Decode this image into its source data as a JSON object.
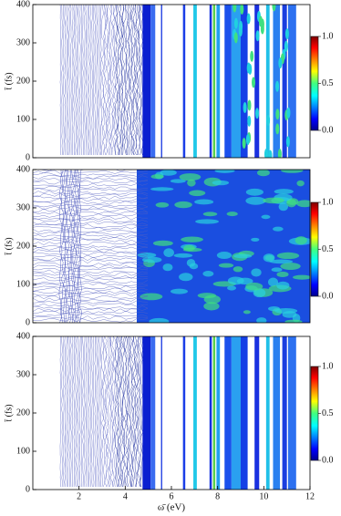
{
  "chart_data": [
    {
      "type": "contour",
      "ylabel": "t̄ (fs)",
      "xlim": [
        0,
        12
      ],
      "ylim": [
        0,
        400
      ],
      "yticks": [
        0,
        100,
        200,
        300,
        400
      ],
      "colorbar": {
        "lim": [
          0,
          1
        ],
        "ticks": [
          {
            "value": 0,
            "label": "0.0"
          },
          {
            "value": 0.5,
            "label": "0.5"
          },
          {
            "value": 1,
            "label": "1.0"
          }
        ]
      }
    },
    {
      "type": "contour",
      "ylabel": "t̄ (fs)",
      "xlim": [
        0,
        12
      ],
      "ylim": [
        0,
        400
      ],
      "yticks": [
        0,
        100,
        200,
        300,
        400
      ],
      "colorbar": {
        "lim": [
          0,
          1
        ],
        "ticks": [
          {
            "value": 0,
            "label": "0.0"
          },
          {
            "value": 0.5,
            "label": "0.5"
          },
          {
            "value": 1,
            "label": "1.0"
          }
        ]
      }
    },
    {
      "type": "contour",
      "ylabel": "t̄ (fs)",
      "xlabel": "ω̄ (eV)",
      "xlim": [
        0,
        12
      ],
      "ylim": [
        0,
        400
      ],
      "yticks": [
        0,
        100,
        200,
        300,
        400
      ],
      "xticks": [
        2,
        4,
        6,
        8,
        10,
        12
      ],
      "colorbar": {
        "lim": [
          0,
          1
        ],
        "ticks": [
          {
            "value": 0,
            "label": "0.0"
          },
          {
            "value": 0.5,
            "label": "0.5"
          },
          {
            "value": 1,
            "label": "1.0"
          }
        ]
      }
    }
  ]
}
